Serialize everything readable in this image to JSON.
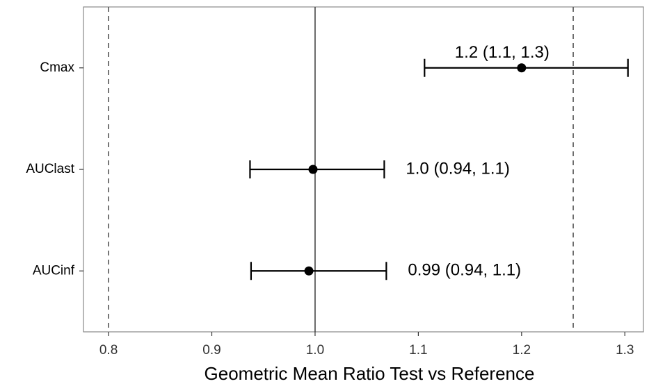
{
  "chart_data": {
    "type": "forest",
    "x_label": "Geometric Mean Ratio Test vs Reference",
    "categories": [
      "Cmax",
      "AUClast",
      "AUCinf"
    ],
    "values": [
      1.2,
      0.998,
      0.994
    ],
    "lower": [
      1.106,
      0.937,
      0.938
    ],
    "upper": [
      1.303,
      1.067,
      1.069
    ],
    "value_labels": [
      "1.2 (1.1, 1.3)",
      "1.0 (0.94, 1.1)",
      "0.99 (0.94, 1.1)"
    ],
    "color": "#000000",
    "xlim": [
      0.7757,
      1.318
    ],
    "xticks": [
      0.8,
      0.9,
      {
        "value": 1.0,
        "label": "1.0"
      },
      1.1,
      1.2,
      1.3
    ],
    "ref_lines": [
      {
        "value": 0.8,
        "dashed": true
      },
      {
        "value": 1.0,
        "dashed": false
      },
      {
        "value": 1.25,
        "dashed": true
      }
    ]
  }
}
